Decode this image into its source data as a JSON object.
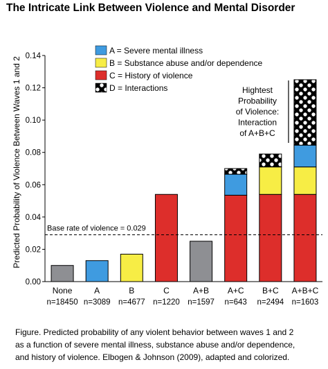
{
  "title": "The Intricate Link Between Violence and Mental Disorder",
  "colors": {
    "A": "#3f9be0",
    "B": "#f7ed45",
    "C": "#dd2e2b",
    "none_bar": "#8e8f93",
    "D_bg": "#000000",
    "D_dot": "#ffffff",
    "outline": "#000000"
  },
  "chart_data": {
    "type": "bar",
    "stacked": true,
    "ylabel": "Predicted Probability of Violence Between Waves 1 and 2",
    "xlabel": "",
    "ylim": [
      0,
      0.14
    ],
    "yticks": [
      "0.00",
      "0.02",
      "0.04",
      "0.06",
      "0.08",
      "0.10",
      "0.12",
      "0.14"
    ],
    "categories": [
      "None",
      "A",
      "B",
      "C",
      "A+B",
      "A+C",
      "B+C",
      "A+B+C"
    ],
    "sample_sizes": [
      "n=18450",
      "n=3089",
      "n=4677",
      "n=1220",
      "n=1597",
      "n=643",
      "n=2494",
      "n=1603"
    ],
    "segments": [
      [
        {
          "key": "none",
          "value": 0.01
        }
      ],
      [
        {
          "key": "A",
          "value": 0.013
        }
      ],
      [
        {
          "key": "B",
          "value": 0.017
        }
      ],
      [
        {
          "key": "C",
          "value": 0.054
        }
      ],
      [
        {
          "key": "none",
          "value": 0.025
        }
      ],
      [
        {
          "key": "C",
          "value": 0.0535
        },
        {
          "key": "A",
          "value": 0.013
        },
        {
          "key": "D",
          "value": 0.0035
        }
      ],
      [
        {
          "key": "C",
          "value": 0.054
        },
        {
          "key": "B",
          "value": 0.017
        },
        {
          "key": "D",
          "value": 0.008
        }
      ],
      [
        {
          "key": "C",
          "value": 0.054
        },
        {
          "key": "B",
          "value": 0.017
        },
        {
          "key": "A",
          "value": 0.0135
        },
        {
          "key": "D",
          "value": 0.0405
        }
      ]
    ],
    "legend": [
      {
        "key": "A",
        "label": "A = Severe mental illness"
      },
      {
        "key": "B",
        "label": "B = Substance abuse and/or dependence"
      },
      {
        "key": "C",
        "label": "C = History of violence"
      },
      {
        "key": "D",
        "label": "D = Interactions"
      }
    ],
    "legend_position": "top-left",
    "reference_line": {
      "value": 0.029,
      "label": "Base rate of violence = 0.029"
    },
    "annotation": {
      "lines": [
        "Hightest",
        "Probability",
        "of Violence:",
        "Interaction",
        "of A+B+C"
      ],
      "points_to": "A+B+C"
    },
    "grid": false
  },
  "caption": {
    "lines": [
      "Figure.   Predicted probability of any violent behavior between waves 1 and 2",
      "as a function of severe mental illness, substance abuse and/or dependence,",
      "and history of violence.  Elbogen & Johnson (2009), adapted and colorized."
    ]
  }
}
